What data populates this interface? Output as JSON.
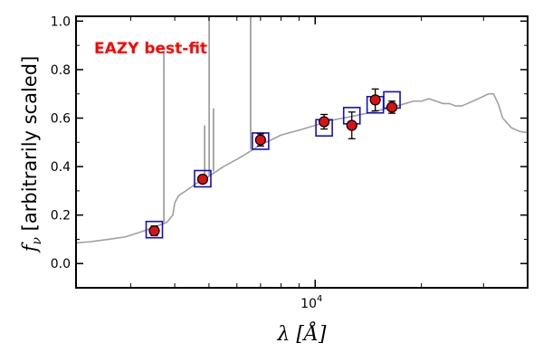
{
  "chart_data": {
    "type": "scatter",
    "title": "",
    "xlabel": "λ [Å]",
    "ylabel": "f_ν [arbitrarily scaled]",
    "x_scale": "log",
    "xlim": [
      2100,
      40000
    ],
    "ylim": [
      -0.1,
      1.02
    ],
    "x_tick_labels": [
      {
        "value": 10000,
        "label": "10",
        "superscript": "4"
      }
    ],
    "y_ticks": [
      0.0,
      0.2,
      0.4,
      0.6,
      0.8,
      1.0
    ],
    "y_tick_labels": [
      "0.0",
      "0.2",
      "0.4",
      "0.6",
      "0.8",
      "1.0"
    ],
    "grid": false,
    "annotation": {
      "text": "EAZY best-fit",
      "color": "#ff0000"
    },
    "colors": {
      "template": "#a0a0a0",
      "model": "#1010cc",
      "observed": "#dd1111"
    },
    "template_spectrum": {
      "x": [
        2100,
        2300,
        2600,
        2900,
        3200,
        3500,
        3800,
        3950,
        4000,
        4100,
        4300,
        4600,
        5000,
        5500,
        6000,
        6500,
        7000,
        7500,
        8000,
        9000,
        10000,
        11000,
        12000,
        13000,
        14000,
        15000,
        16000,
        17000,
        18000,
        19000,
        20000,
        21000,
        22000,
        23000,
        24000,
        25000,
        26000,
        27000,
        28000,
        29000,
        30000,
        31000,
        32000,
        33000,
        34000,
        36000,
        38000,
        40000
      ],
      "y": [
        0.085,
        0.09,
        0.1,
        0.11,
        0.13,
        0.15,
        0.17,
        0.2,
        0.25,
        0.28,
        0.3,
        0.33,
        0.36,
        0.4,
        0.43,
        0.46,
        0.49,
        0.51,
        0.53,
        0.55,
        0.57,
        0.59,
        0.6,
        0.61,
        0.62,
        0.63,
        0.64,
        0.65,
        0.66,
        0.67,
        0.67,
        0.68,
        0.67,
        0.66,
        0.66,
        0.65,
        0.65,
        0.66,
        0.67,
        0.68,
        0.69,
        0.7,
        0.7,
        0.66,
        0.6,
        0.56,
        0.545,
        0.54
      ]
    },
    "emission_lines": [
      {
        "x": 3727,
        "base": 0.17,
        "peak": 0.87
      },
      {
        "x": 4861,
        "base": 0.34,
        "peak": 0.57
      },
      {
        "x": 5007,
        "base": 0.36,
        "peak": 1.02
      },
      {
        "x": 5150,
        "base": 0.38,
        "peak": 0.64
      },
      {
        "x": 6563,
        "base": 0.47,
        "peak": 1.02
      }
    ],
    "model_fluxes": {
      "x": [
        3500,
        4800,
        7000,
        10600,
        12700,
        14800,
        16500
      ],
      "y": [
        0.14,
        0.35,
        0.505,
        0.56,
        0.61,
        0.655,
        0.675
      ]
    },
    "observed_fluxes": {
      "x": [
        3500,
        4800,
        7000,
        10600,
        12700,
        14800,
        16500
      ],
      "y": [
        0.135,
        0.348,
        0.51,
        0.585,
        0.57,
        0.675,
        0.645
      ],
      "err": [
        0.02,
        0.015,
        0.025,
        0.03,
        0.055,
        0.045,
        0.025
      ]
    }
  }
}
